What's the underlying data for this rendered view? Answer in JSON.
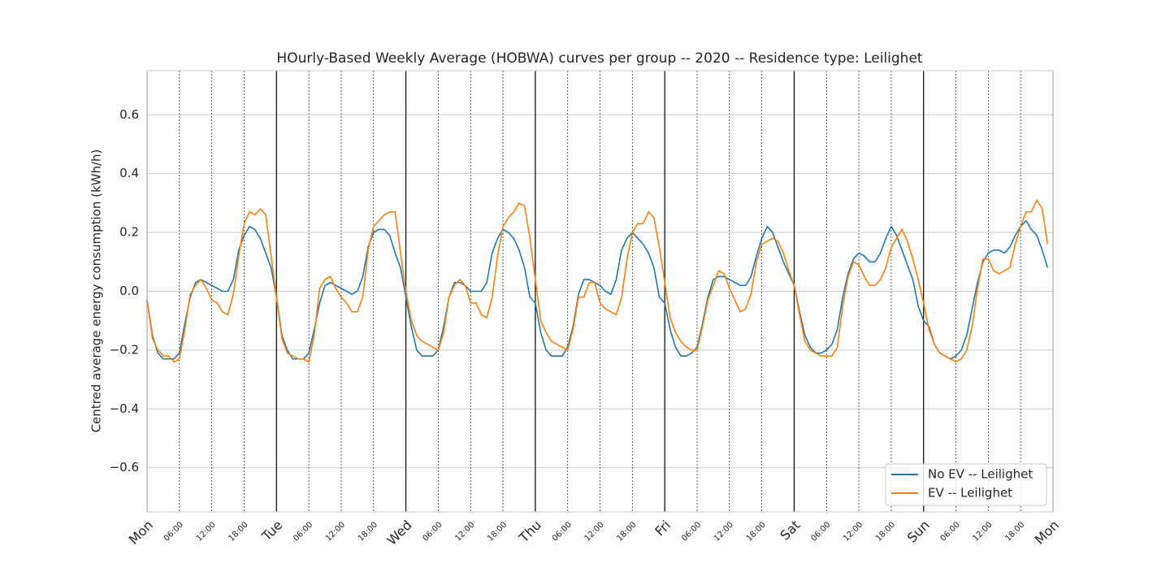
{
  "chart_data": {
    "type": "line",
    "title": "HOurly-Based Weekly Average (HOBWA) curves per group -- 2020 -- Residence type: Leilighet",
    "ylabel": "Centred average energy consumption (kWh/h)",
    "x": [
      0,
      1,
      2,
      3,
      4,
      5,
      6,
      7,
      8,
      9,
      10,
      11,
      12,
      13,
      14,
      15,
      16,
      17,
      18,
      19,
      20,
      21,
      22,
      23,
      24,
      25,
      26,
      27,
      28,
      29,
      30,
      31,
      32,
      33,
      34,
      35,
      36,
      37,
      38,
      39,
      40,
      41,
      42,
      43,
      44,
      45,
      46,
      47,
      48,
      49,
      50,
      51,
      52,
      53,
      54,
      55,
      56,
      57,
      58,
      59,
      60,
      61,
      62,
      63,
      64,
      65,
      66,
      67,
      68,
      69,
      70,
      71,
      72,
      73,
      74,
      75,
      76,
      77,
      78,
      79,
      80,
      81,
      82,
      83,
      84,
      85,
      86,
      87,
      88,
      89,
      90,
      91,
      92,
      93,
      94,
      95,
      96,
      97,
      98,
      99,
      100,
      101,
      102,
      103,
      104,
      105,
      106,
      107,
      108,
      109,
      110,
      111,
      112,
      113,
      114,
      115,
      116,
      117,
      118,
      119,
      120,
      121,
      122,
      123,
      124,
      125,
      126,
      127,
      128,
      129,
      130,
      131,
      132,
      133,
      134,
      135,
      136,
      137,
      138,
      139,
      140,
      141,
      142,
      143,
      144,
      145,
      146,
      147,
      148,
      149,
      150,
      151,
      152,
      153,
      154,
      155,
      156,
      157,
      158,
      159,
      160,
      161,
      162,
      163,
      164,
      165,
      166,
      167
    ],
    "series": [
      {
        "name": "No EV -- Leilighet",
        "color": "#1f77b4",
        "values": [
          -0.03,
          -0.15,
          -0.21,
          -0.23,
          -0.23,
          -0.23,
          -0.21,
          -0.11,
          -0.02,
          0.03,
          0.04,
          0.03,
          0.02,
          0.01,
          0.0,
          0.0,
          0.04,
          0.14,
          0.19,
          0.22,
          0.21,
          0.18,
          0.13,
          0.08,
          -0.02,
          -0.15,
          -0.2,
          -0.23,
          -0.23,
          -0.23,
          -0.21,
          -0.13,
          -0.04,
          0.02,
          0.03,
          0.02,
          0.01,
          0.0,
          -0.01,
          0.0,
          0.05,
          0.15,
          0.2,
          0.21,
          0.21,
          0.19,
          0.13,
          0.08,
          -0.02,
          -0.12,
          -0.2,
          -0.22,
          -0.22,
          -0.22,
          -0.2,
          -0.12,
          -0.02,
          0.03,
          0.03,
          0.02,
          0.0,
          0.0,
          0.0,
          0.03,
          0.13,
          0.18,
          0.21,
          0.2,
          0.18,
          0.14,
          0.08,
          -0.02,
          -0.04,
          -0.14,
          -0.2,
          -0.22,
          -0.22,
          -0.22,
          -0.19,
          -0.12,
          -0.01,
          0.04,
          0.04,
          0.03,
          0.02,
          0.0,
          -0.01,
          0.04,
          0.14,
          0.18,
          0.2,
          0.18,
          0.16,
          0.13,
          0.08,
          -0.02,
          -0.04,
          -0.13,
          -0.19,
          -0.22,
          -0.22,
          -0.21,
          -0.19,
          -0.11,
          -0.02,
          0.04,
          0.05,
          0.05,
          0.04,
          0.03,
          0.02,
          0.02,
          0.05,
          0.12,
          0.18,
          0.22,
          0.2,
          0.15,
          0.1,
          0.06,
          0.02,
          -0.07,
          -0.15,
          -0.19,
          -0.21,
          -0.21,
          -0.2,
          -0.18,
          -0.13,
          -0.02,
          0.06,
          0.11,
          0.13,
          0.12,
          0.1,
          0.1,
          0.13,
          0.18,
          0.22,
          0.19,
          0.14,
          0.09,
          0.04,
          -0.05,
          -0.1,
          -0.12,
          -0.18,
          -0.21,
          -0.22,
          -0.23,
          -0.22,
          -0.2,
          -0.15,
          -0.06,
          0.03,
          0.1,
          0.13,
          0.14,
          0.14,
          0.13,
          0.15,
          0.19,
          0.22,
          0.24,
          0.21,
          0.19,
          0.14,
          0.08
        ]
      },
      {
        "name": "EV -- Leilighet",
        "color": "#ff7f0e",
        "values": [
          -0.03,
          -0.16,
          -0.2,
          -0.22,
          -0.22,
          -0.24,
          -0.23,
          -0.13,
          -0.01,
          0.02,
          0.04,
          0.01,
          -0.03,
          -0.04,
          -0.07,
          -0.08,
          -0.01,
          0.12,
          0.23,
          0.27,
          0.26,
          0.28,
          0.26,
          0.12,
          -0.02,
          -0.16,
          -0.21,
          -0.22,
          -0.23,
          -0.23,
          -0.24,
          -0.15,
          0.01,
          0.04,
          0.05,
          0.01,
          -0.02,
          -0.04,
          -0.07,
          -0.07,
          -0.02,
          0.14,
          0.22,
          0.24,
          0.26,
          0.27,
          0.27,
          0.13,
          0.0,
          -0.1,
          -0.15,
          -0.17,
          -0.18,
          -0.19,
          -0.2,
          -0.14,
          -0.02,
          0.02,
          0.04,
          0.02,
          -0.04,
          -0.04,
          -0.08,
          -0.09,
          -0.02,
          0.12,
          0.22,
          0.25,
          0.27,
          0.3,
          0.29,
          0.18,
          0.04,
          -0.1,
          -0.14,
          -0.17,
          -0.18,
          -0.19,
          -0.2,
          -0.13,
          -0.02,
          -0.02,
          0.03,
          0.03,
          -0.04,
          -0.06,
          -0.07,
          -0.08,
          -0.02,
          0.11,
          0.2,
          0.23,
          0.23,
          0.27,
          0.25,
          0.15,
          0.03,
          -0.09,
          -0.14,
          -0.17,
          -0.19,
          -0.2,
          -0.2,
          -0.12,
          -0.03,
          0.02,
          0.07,
          0.06,
          0.01,
          -0.03,
          -0.07,
          -0.06,
          -0.01,
          0.1,
          0.16,
          0.17,
          0.18,
          0.17,
          0.13,
          0.07,
          0.02,
          -0.08,
          -0.17,
          -0.2,
          -0.21,
          -0.22,
          -0.22,
          -0.22,
          -0.19,
          -0.05,
          0.05,
          0.1,
          0.09,
          0.05,
          0.02,
          0.02,
          0.04,
          0.08,
          0.15,
          0.18,
          0.21,
          0.17,
          0.11,
          0.04,
          -0.04,
          -0.13,
          -0.18,
          -0.21,
          -0.22,
          -0.23,
          -0.24,
          -0.23,
          -0.2,
          -0.12,
          0.01,
          0.11,
          0.11,
          0.07,
          0.06,
          0.07,
          0.08,
          0.16,
          0.22,
          0.27,
          0.27,
          0.31,
          0.28,
          0.16
        ]
      }
    ],
    "xlim": [
      0,
      168
    ],
    "xticks": [
      {
        "value": 0,
        "label": "Mon"
      },
      {
        "value": 24,
        "label": "Tue"
      },
      {
        "value": 48,
        "label": "Wed"
      },
      {
        "value": 72,
        "label": "Thu"
      },
      {
        "value": 96,
        "label": "Fri"
      },
      {
        "value": 120,
        "label": "Sat"
      },
      {
        "value": 144,
        "label": "Sun"
      },
      {
        "value": 168,
        "label": "Mon"
      }
    ],
    "xticks_minor": [
      {
        "value": 6,
        "label": "06:00"
      },
      {
        "value": 12,
        "label": "12:00"
      },
      {
        "value": 18,
        "label": "18:00"
      },
      {
        "value": 30,
        "label": "06:00"
      },
      {
        "value": 36,
        "label": "12:00"
      },
      {
        "value": 42,
        "label": "18:00"
      },
      {
        "value": 54,
        "label": "06:00"
      },
      {
        "value": 60,
        "label": "12:00"
      },
      {
        "value": 66,
        "label": "18:00"
      },
      {
        "value": 78,
        "label": "06:00"
      },
      {
        "value": 84,
        "label": "12:00"
      },
      {
        "value": 90,
        "label": "18:00"
      },
      {
        "value": 102,
        "label": "06:00"
      },
      {
        "value": 108,
        "label": "12:00"
      },
      {
        "value": 114,
        "label": "18:00"
      },
      {
        "value": 126,
        "label": "06:00"
      },
      {
        "value": 132,
        "label": "12:00"
      },
      {
        "value": 138,
        "label": "18:00"
      },
      {
        "value": 150,
        "label": "06:00"
      },
      {
        "value": 156,
        "label": "12:00"
      },
      {
        "value": 162,
        "label": "18:00"
      }
    ],
    "ylim": [
      -0.75,
      0.75
    ],
    "yticks": [
      {
        "value": -0.6,
        "label": "−0.6"
      },
      {
        "value": -0.4,
        "label": "−0.4"
      },
      {
        "value": -0.2,
        "label": "−0.2"
      },
      {
        "value": 0,
        "label": "0.0"
      },
      {
        "value": 0.2,
        "label": "0.2"
      },
      {
        "value": 0.4,
        "label": "0.4"
      },
      {
        "value": 0.6,
        "label": "0.6"
      }
    ],
    "grid": true,
    "legend": "lower right"
  }
}
